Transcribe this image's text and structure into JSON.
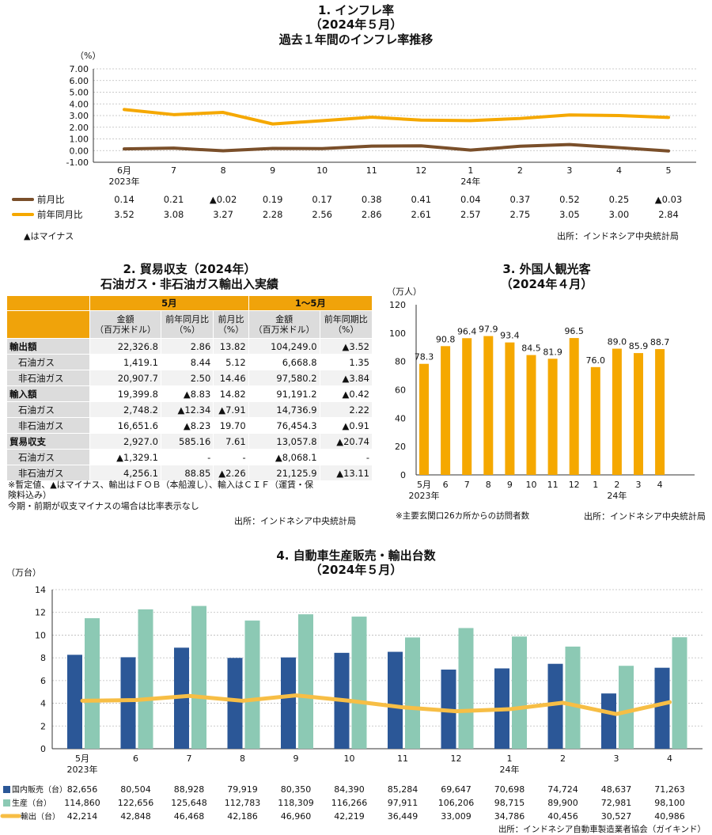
{
  "chart1": {
    "title1": "1. インフレ率",
    "title2": "（2024年５月）",
    "title3": "過去１年間のインフレ率推移",
    "unit": "（%）",
    "yticks": [
      "7.00",
      "6.00",
      "5.00",
      "4.00",
      "3.00",
      "2.00",
      "1.00",
      "0.00",
      "-1.00"
    ],
    "xlabels": [
      "6月",
      "7",
      "8",
      "9",
      "10",
      "11",
      "12",
      "1",
      "2",
      "3",
      "4",
      "5"
    ],
    "xsub_2023": "2023年",
    "xsub_24": "24年",
    "series": [
      {
        "name": "前月比",
        "color": "#7a4f2a",
        "values": [
          0.14,
          0.21,
          -0.02,
          0.19,
          0.17,
          0.38,
          0.41,
          0.04,
          0.37,
          0.52,
          0.25,
          -0.03
        ],
        "labels": [
          "0.14",
          "0.21",
          "▲0.02",
          "0.19",
          "0.17",
          "0.38",
          "0.41",
          "0.04",
          "0.37",
          "0.52",
          "0.25",
          "▲0.03"
        ]
      },
      {
        "name": "前年同月比",
        "color": "#f5a800",
        "values": [
          3.52,
          3.08,
          3.27,
          2.28,
          2.56,
          2.86,
          2.61,
          2.57,
          2.75,
          3.05,
          3.0,
          2.84
        ],
        "labels": [
          "3.52",
          "3.08",
          "3.27",
          "2.28",
          "2.56",
          "2.86",
          "2.61",
          "2.57",
          "2.75",
          "3.05",
          "3.00",
          "2.84"
        ]
      }
    ],
    "note": "▲はマイナス",
    "source": "出所：インドネシア中央統計局"
  },
  "chart_data": [
    {
      "type": "line",
      "title": "過去１年間のインフレ率推移",
      "ylabel": "（%）",
      "ylim": [
        -1,
        7
      ],
      "categories": [
        "6月 2023年",
        "7",
        "8",
        "9",
        "10",
        "11",
        "12",
        "1 24年",
        "2",
        "3",
        "4",
        "5"
      ],
      "series": [
        {
          "name": "前月比",
          "values": [
            0.14,
            0.21,
            -0.02,
            0.19,
            0.17,
            0.38,
            0.41,
            0.04,
            0.37,
            0.52,
            0.25,
            -0.03
          ]
        },
        {
          "name": "前年同月比",
          "values": [
            3.52,
            3.08,
            3.27,
            2.28,
            2.56,
            2.86,
            2.61,
            2.57,
            2.75,
            3.05,
            3.0,
            2.84
          ]
        }
      ]
    },
    {
      "type": "table",
      "title": "2. 貿易収支（2024年） 石油ガス・非石油ガス輸出入実績",
      "groups": [
        "5月",
        "1～5月"
      ],
      "columns": [
        "金額（百万米ドル）",
        "前年同月比（%）",
        "前月比（%）",
        "金額（百万米ドル）",
        "前年同期比（%）"
      ],
      "rows": [
        {
          "label": "輸出額",
          "values": [
            "22,326.8",
            "2.86",
            "13.82",
            "104,249.0",
            "▲3.52"
          ]
        },
        {
          "label": "石油ガス",
          "values": [
            "1,419.1",
            "8.44",
            "5.12",
            "6,668.8",
            "1.35"
          ]
        },
        {
          "label": "非石油ガス",
          "values": [
            "20,907.7",
            "2.50",
            "14.46",
            "97,580.2",
            "▲3.84"
          ]
        },
        {
          "label": "輸入額",
          "values": [
            "19,399.8",
            "▲8.83",
            "14.82",
            "91,191.2",
            "▲0.42"
          ]
        },
        {
          "label": "石油ガス",
          "values": [
            "2,748.2",
            "▲12.34",
            "▲7.91",
            "14,736.9",
            "2.22"
          ]
        },
        {
          "label": "非石油ガス",
          "values": [
            "16,651.6",
            "▲8.23",
            "19.70",
            "76,454.3",
            "▲0.91"
          ]
        },
        {
          "label": "貿易収支",
          "values": [
            "2,927.0",
            "585.16",
            "7.61",
            "13,057.8",
            "▲20.74"
          ]
        },
        {
          "label": "石油ガス",
          "values": [
            "▲1,329.1",
            "-",
            "-",
            "▲8,068.1",
            "-"
          ]
        },
        {
          "label": "非石油ガス",
          "values": [
            "4,256.1",
            "88.85",
            "▲2.26",
            "21,125.9",
            "▲13.11"
          ]
        }
      ]
    },
    {
      "type": "bar",
      "title": "3. 外国人観光客（2024年４月）",
      "ylabel": "（万人）",
      "ylim": [
        0,
        120
      ],
      "categories": [
        "5月 2023年",
        "6",
        "7",
        "8",
        "9",
        "10",
        "11",
        "12",
        "1 24年",
        "2",
        "3",
        "4"
      ],
      "values": [
        78.3,
        90.8,
        96.4,
        97.9,
        93.4,
        84.5,
        81.9,
        96.5,
        76.0,
        89.0,
        85.9,
        88.7
      ]
    },
    {
      "type": "bar",
      "title": "4. 自動車生産販売・輸出台数（2024年５月）",
      "ylabel": "（万台）",
      "ylim": [
        0,
        14
      ],
      "categories": [
        "5月 2023年",
        "6",
        "7",
        "8",
        "9",
        "10",
        "11",
        "12",
        "1 24年",
        "2",
        "3",
        "4"
      ],
      "series": [
        {
          "name": "国内販売（台）",
          "values": [
            82656,
            80504,
            88928,
            79919,
            80350,
            84390,
            85284,
            69647,
            70698,
            74724,
            48637,
            71263
          ]
        },
        {
          "name": "生産（台）",
          "values": [
            114860,
            122656,
            125648,
            112783,
            118309,
            116266,
            97911,
            106206,
            98715,
            89900,
            72981,
            98100
          ]
        },
        {
          "name": "輸出（台）",
          "values": [
            42214,
            42848,
            46468,
            42186,
            46960,
            42219,
            36449,
            33009,
            34786,
            40456,
            30527,
            40986
          ]
        }
      ]
    }
  ],
  "chart2": {
    "title1": "2. 貿易収支（2024年）",
    "title2": "石油ガス・非石油ガス輸出入実績",
    "group1": "5月",
    "group2": "1～5月",
    "col1a": "金額",
    "col1b": "（百万米ドル）",
    "col2a": "前年同月比",
    "col2b": "（%）",
    "col3a": "前月比",
    "col3b": "（%）",
    "col4a": "金額",
    "col4b": "（百万米ドル）",
    "col5a": "前年同期比",
    "col5b": "（%）",
    "note1": "※暫定値、▲はマイナス、輸出はＦＯＢ（本船渡し）、輸入はＣＩＦ（運賃・保",
    "note2": "険料込み）",
    "note3": "今期・前期が収支マイナスの場合は比率表示なし",
    "source": "出所：インドネシア中央統計局"
  },
  "chart3": {
    "title1": "3. 外国人観光客",
    "title2": "（2024年４月）",
    "unit": "（万人）",
    "yticks": [
      "120",
      "100",
      "80",
      "60",
      "40",
      "20",
      "0"
    ],
    "xlabels": [
      "5月",
      "6",
      "7",
      "8",
      "9",
      "10",
      "11",
      "12",
      "1",
      "2",
      "3",
      "4"
    ],
    "xsub_2023": "2023年",
    "xsub_24": "24年",
    "labels": [
      "78.3",
      "90.8",
      "96.4",
      "97.9",
      "93.4",
      "84.5",
      "81.9",
      "96.5",
      "76.0",
      "89.0",
      "85.9",
      "88.7"
    ],
    "color": "#f5a800",
    "note": "※主要玄関口26カ所からの訪問者数",
    "source": "出所：インドネシア中央統計局"
  },
  "chart4": {
    "title1": "4. 自動車生産販売・輸出台数",
    "title2": "（2024年５月）",
    "unit": "（万台）",
    "yticks": [
      "14",
      "12",
      "10",
      "8",
      "6",
      "4",
      "2",
      "0"
    ],
    "xlabels": [
      "5月",
      "6",
      "7",
      "8",
      "9",
      "10",
      "11",
      "12",
      "1",
      "2",
      "3",
      "4"
    ],
    "xsub_2023": "2023年",
    "xsub_24": "24年",
    "colors": {
      "domestic": "#2b5797",
      "production": "#8cc9b4",
      "export": "#f7be45"
    },
    "rows": [
      {
        "name": "国内販売（台）",
        "labels": [
          "82,656",
          "80,504",
          "88,928",
          "79,919",
          "80,350",
          "84,390",
          "85,284",
          "69,647",
          "70,698",
          "74,724",
          "48,637",
          "71,263"
        ]
      },
      {
        "name": "生産（台）",
        "labels": [
          "114,860",
          "122,656",
          "125,648",
          "112,783",
          "118,309",
          "116,266",
          "97,911",
          "106,206",
          "98,715",
          "89,900",
          "72,981",
          "98,100"
        ]
      },
      {
        "name": "輸出（台）",
        "labels": [
          "42,214",
          "42,848",
          "46,468",
          "42,186",
          "46,960",
          "42,219",
          "36,449",
          "33,009",
          "34,786",
          "40,456",
          "30,527",
          "40,986"
        ]
      }
    ],
    "source": "出所：インドネシア自動車製造業者協会（ガイキンド）"
  }
}
